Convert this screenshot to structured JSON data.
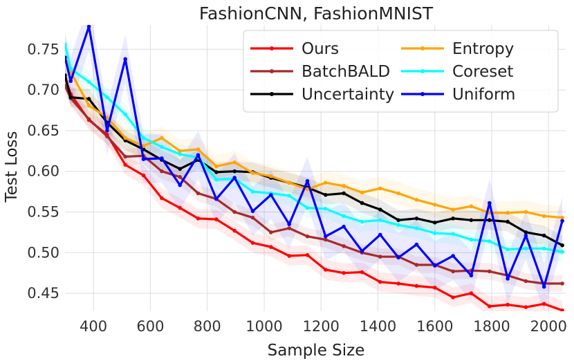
{
  "chart_data": {
    "type": "line",
    "title": "FashionCNN, FashionMNIST",
    "xlabel": "Sample Size",
    "ylabel": "Test Loss",
    "xlim": [
      300,
      2060
    ],
    "ylim": [
      0.428,
      0.78
    ],
    "xticks": [
      400,
      600,
      800,
      1000,
      1200,
      1400,
      1600,
      1800,
      2000
    ],
    "yticks": [
      0.45,
      0.5,
      0.55,
      0.6,
      0.65,
      0.7,
      0.75
    ],
    "grid": true,
    "legend_position": "top-right",
    "x": [
      300,
      320,
      384,
      448,
      512,
      576,
      640,
      704,
      768,
      832,
      896,
      960,
      1024,
      1088,
      1152,
      1216,
      1280,
      1344,
      1408,
      1472,
      1536,
      1600,
      1664,
      1728,
      1792,
      1856,
      1920,
      1984,
      2048
    ],
    "series": [
      {
        "name": "Ours",
        "color": "#ff0000",
        "band": 0.012,
        "values": [
          0.715,
          0.695,
          0.663,
          0.645,
          0.608,
          0.595,
          0.567,
          0.555,
          0.542,
          0.541,
          0.527,
          0.512,
          0.507,
          0.496,
          0.497,
          0.479,
          0.475,
          0.476,
          0.464,
          0.462,
          0.459,
          0.457,
          0.445,
          0.45,
          0.434,
          0.436,
          0.433,
          0.437,
          0.429
        ]
      },
      {
        "name": "BatchBALD",
        "color": "#a52a2a",
        "band": 0.01,
        "values": [
          0.705,
          0.69,
          0.664,
          0.643,
          0.618,
          0.619,
          0.6,
          0.593,
          0.573,
          0.566,
          0.55,
          0.543,
          0.525,
          0.53,
          0.52,
          0.516,
          0.508,
          0.5,
          0.495,
          0.495,
          0.485,
          0.485,
          0.477,
          0.478,
          0.477,
          0.472,
          0.465,
          0.462,
          0.462
        ]
      },
      {
        "name": "Uncertainty",
        "color": "#000000",
        "band": 0.012,
        "values": [
          0.718,
          0.691,
          0.689,
          0.66,
          0.638,
          0.627,
          0.614,
          0.603,
          0.614,
          0.599,
          0.6,
          0.599,
          0.592,
          0.586,
          0.58,
          0.571,
          0.573,
          0.561,
          0.553,
          0.54,
          0.542,
          0.537,
          0.542,
          0.54,
          0.54,
          0.538,
          0.525,
          0.521,
          0.509
        ]
      },
      {
        "name": "Entropy",
        "color": "#ffa500",
        "band": 0.014,
        "values": [
          0.74,
          0.722,
          0.681,
          0.666,
          0.641,
          0.631,
          0.641,
          0.625,
          0.627,
          0.606,
          0.611,
          0.598,
          0.594,
          0.586,
          0.578,
          0.586,
          0.582,
          0.574,
          0.579,
          0.573,
          0.565,
          0.559,
          0.553,
          0.557,
          0.549,
          0.549,
          0.55,
          0.545,
          0.543
        ]
      },
      {
        "name": "Coreset",
        "color": "#00ffff",
        "band": 0.012,
        "values": [
          0.756,
          0.726,
          0.71,
          0.691,
          0.67,
          0.641,
          0.63,
          0.621,
          0.617,
          0.59,
          0.591,
          0.575,
          0.573,
          0.57,
          0.555,
          0.554,
          0.545,
          0.538,
          0.54,
          0.534,
          0.53,
          0.524,
          0.523,
          0.516,
          0.514,
          0.504,
          0.505,
          0.505,
          0.501
        ]
      },
      {
        "name": "Uniform",
        "color": "#0000ff",
        "band": 0.03,
        "values": [
          0.74,
          0.711,
          0.778,
          0.65,
          0.738,
          0.615,
          0.616,
          0.583,
          0.62,
          0.566,
          0.592,
          0.551,
          0.571,
          0.535,
          0.588,
          0.52,
          0.532,
          0.502,
          0.522,
          0.494,
          0.51,
          0.484,
          0.496,
          0.472,
          0.561,
          0.468,
          0.521,
          0.458,
          0.539
        ]
      }
    ]
  }
}
